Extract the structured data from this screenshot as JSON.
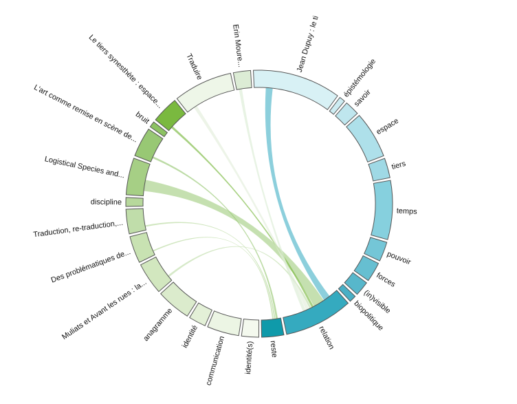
{
  "diagram": {
    "type": "chord",
    "groups": [
      {
        "id": "jean-dupuy",
        "label": "Jean Dupuy : le ti",
        "value": 18,
        "color": "#d8f1f5"
      },
      {
        "id": "epistemologie",
        "label": "épistémologie",
        "value": 1.2,
        "color": "#cdecf2"
      },
      {
        "id": "savoir",
        "label": "savoir",
        "value": 3,
        "color": "#bfe6ee"
      },
      {
        "id": "espace",
        "label": "espace",
        "value": 9.5,
        "color": "#aee0ea"
      },
      {
        "id": "tiers",
        "label": "tiers",
        "value": 4,
        "color": "#9fd9e5"
      },
      {
        "id": "temps",
        "label": "temps",
        "value": 12,
        "color": "#86d0de"
      },
      {
        "id": "pouvoir",
        "label": "pouvoir",
        "value": 4,
        "color": "#74c6d7"
      },
      {
        "id": "forces",
        "label": "forces",
        "value": 4,
        "color": "#66bfd1"
      },
      {
        "id": "invisible",
        "label": "(in)visible",
        "value": 3,
        "color": "#57b7cb"
      },
      {
        "id": "biopolitique",
        "label": "biopolitique",
        "value": 1.4,
        "color": "#49afc5"
      },
      {
        "id": "relation",
        "label": "relation",
        "value": 14,
        "color": "#35aabf"
      },
      {
        "id": "reste",
        "label": "reste",
        "value": 4.5,
        "color": "#0f9aaa"
      },
      {
        "id": "identites",
        "label": "identité(s)",
        "value": 3.5,
        "color": "#f4f9ee"
      },
      {
        "id": "communication",
        "label": "communication",
        "value": 6.5,
        "color": "#ecf5e4"
      },
      {
        "id": "identite",
        "label": "identité",
        "value": 3.5,
        "color": "#e3f0d7"
      },
      {
        "id": "anagramme",
        "label": "anagramme",
        "value": 7,
        "color": "#dbebcc"
      },
      {
        "id": "muliats",
        "label": "Muliats et Avant les rues : la...",
        "value": 6.5,
        "color": "#d2e7bf"
      },
      {
        "id": "problematiques",
        "label": "Des problématiques de...",
        "value": 5.5,
        "color": "#c8e2b2"
      },
      {
        "id": "traduction-re",
        "label": "Traduction, re-traduction,...",
        "value": 5,
        "color": "#c0ddaa"
      },
      {
        "id": "discipline",
        "label": "discipline",
        "value": 1.8,
        "color": "#b7d89c"
      },
      {
        "id": "logistical",
        "label": "Logistical Species and...",
        "value": 7.5,
        "color": "#a6cf85"
      },
      {
        "id": "art-remise",
        "label": "L'art comme remise en scène de...",
        "value": 6,
        "color": "#98c874"
      },
      {
        "id": "bruit",
        "label": "bruit",
        "value": 1.2,
        "color": "#8cc262"
      },
      {
        "id": "tiers-synesthete",
        "label": "Le tiers synesthète : espace...",
        "value": 5.5,
        "color": "#7ab93f"
      },
      {
        "id": "traduire",
        "label": "Traduire",
        "value": 12,
        "color": "#eef6e8"
      },
      {
        "id": "erin-moure",
        "label": "Erin Moure...",
        "value": 3.5,
        "color": "#dcecd5"
      }
    ],
    "links": [
      {
        "source": "jean-dupuy",
        "target": "relation",
        "value": 1.6,
        "color": "#4fb6c9"
      },
      {
        "source": "logistical",
        "target": "relation",
        "value": 2.6,
        "color": "#a6cf85"
      },
      {
        "source": "tiers-synesthete",
        "target": "relation",
        "value": 0.5,
        "color": "#7ab93f"
      },
      {
        "source": "art-remise",
        "target": "reste",
        "value": 0.45,
        "color": "#98c874"
      },
      {
        "source": "traduction-re",
        "target": "reste",
        "value": 0.35,
        "color": "#b7d89c"
      },
      {
        "source": "problematiques",
        "target": "reste",
        "value": 0.3,
        "color": "#b7d89c"
      },
      {
        "source": "muliats",
        "target": "relation",
        "value": 0.45,
        "color": "#c0ddaa"
      },
      {
        "source": "traduire",
        "target": "relation",
        "value": 0.8,
        "color": "#e3eedb"
      },
      {
        "source": "erin-moure",
        "target": "relation",
        "value": 0.7,
        "color": "#dcecd5"
      }
    ]
  }
}
